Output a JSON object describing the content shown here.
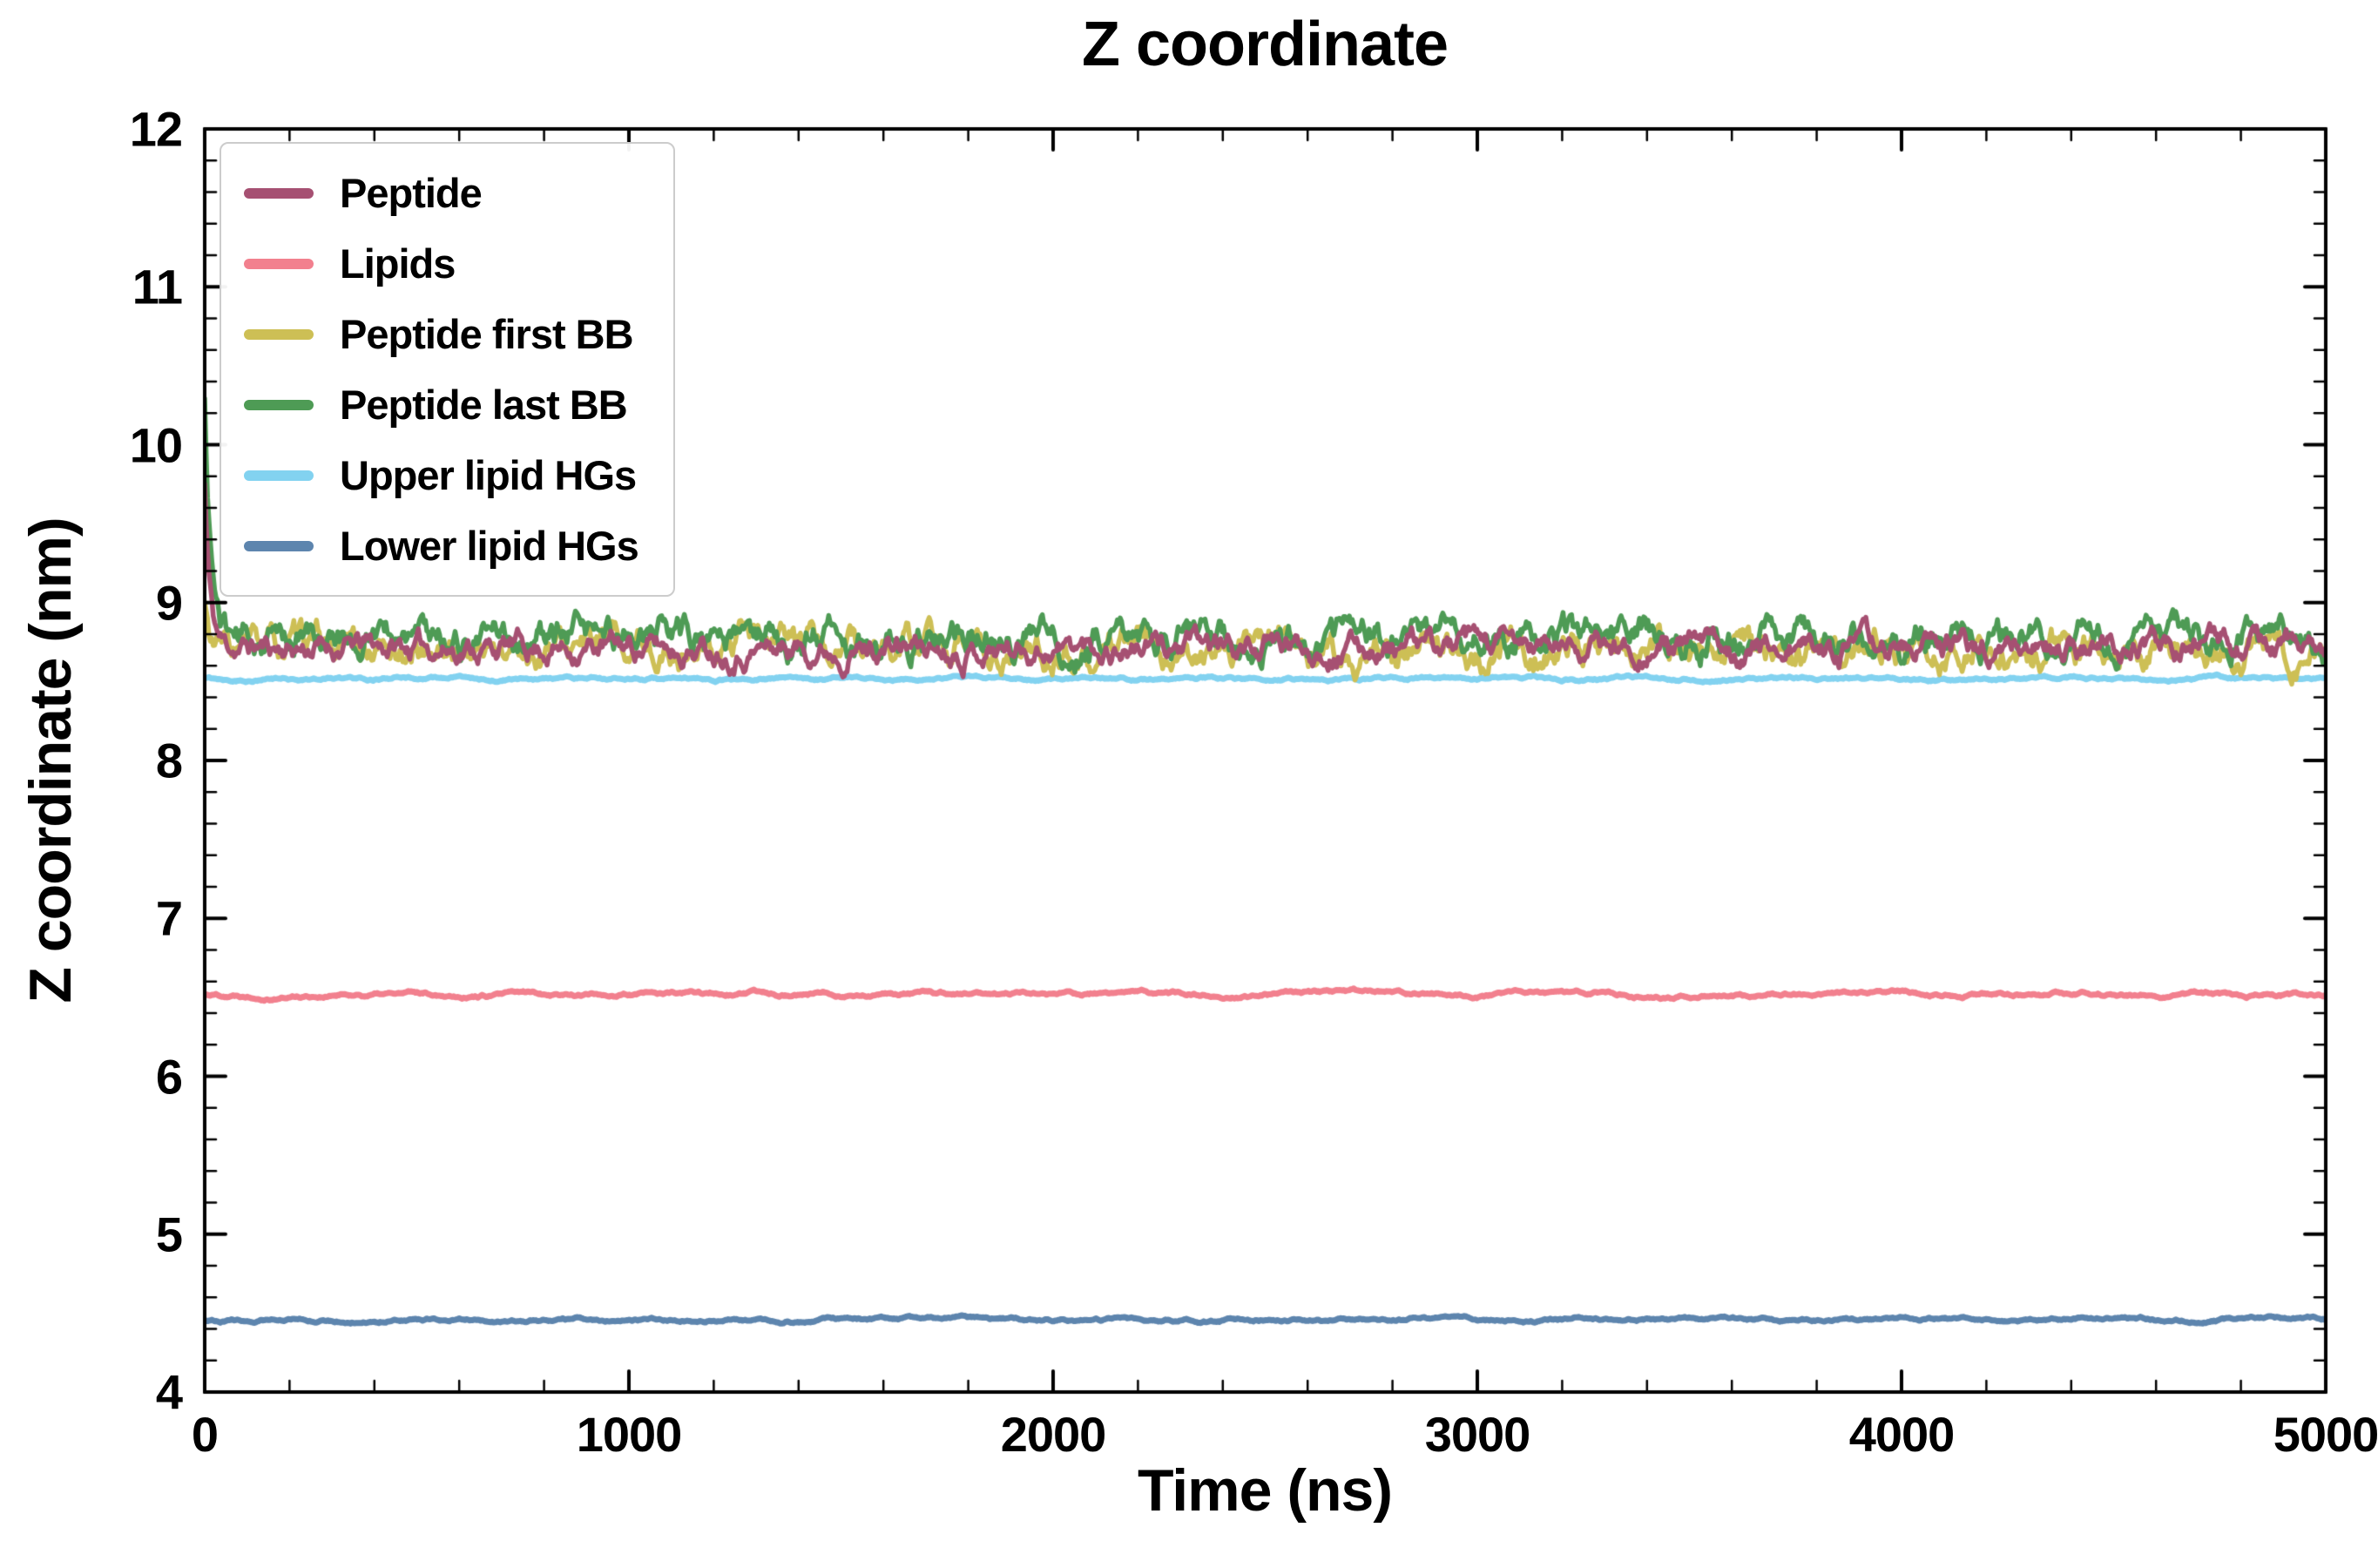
{
  "title": "Z coordinate",
  "chart_data": {
    "type": "line",
    "title": "Z coordinate",
    "xlabel": "Time (ns)",
    "ylabel": "Z coordinate (nm)",
    "xlim": [
      0,
      5000
    ],
    "ylim": [
      4,
      12
    ],
    "xticks": [
      0,
      1000,
      2000,
      3000,
      4000,
      5000
    ],
    "yticks": [
      4,
      5,
      6,
      7,
      8,
      9,
      10,
      11,
      12
    ],
    "x_minor_step": 200,
    "y_minor_step": 0.2,
    "grid": false,
    "legend_position": "upper-left",
    "n_points": 1500,
    "series": [
      {
        "name": "Peptide",
        "color": "#a65072",
        "mean": 8.72,
        "noise_amp": 0.1,
        "smooth": 0.88,
        "start_value": 9.75,
        "settle_ns": 12,
        "line_width": 5.5,
        "seed": 11
      },
      {
        "name": "Lipids",
        "color": "#f2808e",
        "mean": 6.52,
        "noise_amp": 0.03,
        "smooth": 0.95,
        "start_value": 6.52,
        "settle_ns": 0,
        "line_width": 7,
        "seed": 22
      },
      {
        "name": "Peptide first BB",
        "color": "#cdbf55",
        "mean": 8.7,
        "noise_amp": 0.13,
        "smooth": 0.88,
        "start_value": 9.0,
        "settle_ns": 10,
        "line_width": 5.5,
        "seed": 33
      },
      {
        "name": "Peptide last BB",
        "color": "#4e9b55",
        "mean": 8.78,
        "noise_amp": 0.13,
        "smooth": 0.88,
        "start_value": 10.25,
        "settle_ns": 15,
        "line_width": 5.5,
        "seed": 44
      },
      {
        "name": "Upper lipid HGs",
        "color": "#82d2f0",
        "mean": 8.52,
        "noise_amp": 0.025,
        "smooth": 0.95,
        "start_value": 8.52,
        "settle_ns": 0,
        "line_width": 7,
        "seed": 55
      },
      {
        "name": "Lower lipid HGs",
        "color": "#5d85ae",
        "mean": 4.46,
        "noise_amp": 0.025,
        "smooth": 0.95,
        "start_value": 4.46,
        "settle_ns": 0,
        "line_width": 7,
        "seed": 66
      }
    ],
    "draw_order": [
      1,
      5,
      4,
      2,
      3,
      0
    ],
    "axes": {
      "left": 235,
      "top": 148,
      "right": 2670,
      "bottom": 1598,
      "spine_width": 4,
      "tick_major_len": 24,
      "tick_minor_len": 13,
      "tick_color": "#000000"
    }
  }
}
